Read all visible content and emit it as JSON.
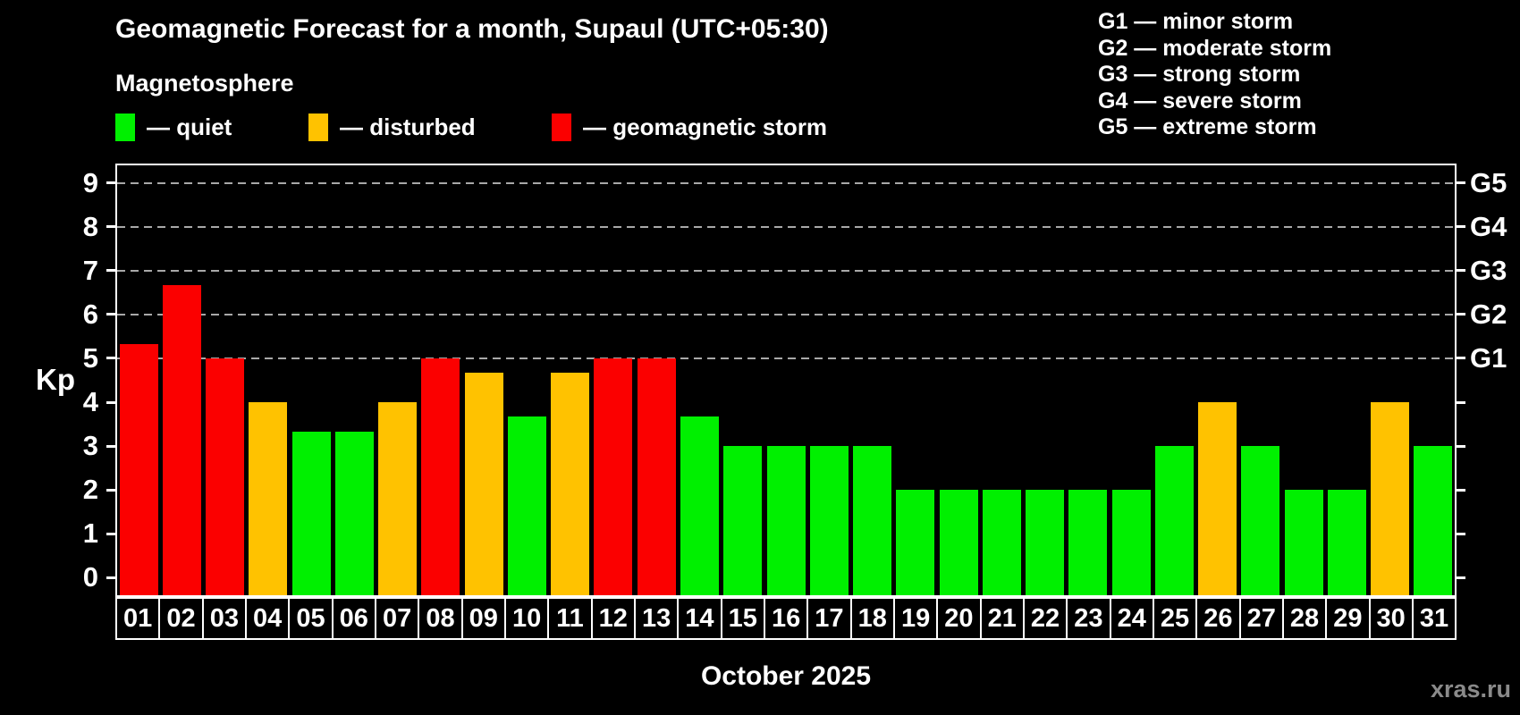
{
  "title": "Geomagnetic Forecast for a month, Supaul (UTC+05:30)",
  "subtitle": "Magnetosphere",
  "legend": {
    "quiet": "— quiet",
    "disturbed": "— disturbed",
    "storm": "— geomagnetic storm"
  },
  "g_legend": [
    "G1 — minor storm",
    "G2 — moderate storm",
    "G3 — strong storm",
    "G4 — severe storm",
    "G5 — extreme storm"
  ],
  "y_axis": {
    "label": "Kp",
    "ticks": [
      0,
      1,
      2,
      3,
      4,
      5,
      6,
      7,
      8,
      9
    ]
  },
  "right_axis": {
    "labels": [
      {
        "text": "G1",
        "kp": 5
      },
      {
        "text": "G2",
        "kp": 6
      },
      {
        "text": "G3",
        "kp": 7
      },
      {
        "text": "G4",
        "kp": 8
      },
      {
        "text": "G5",
        "kp": 9
      }
    ]
  },
  "x_axis": {
    "label": "October 2025"
  },
  "watermark": "xras.ru",
  "colors": {
    "quiet": "#00f000",
    "disturbed": "#ffc200",
    "storm": "#fb0000",
    "grid": "#a8a8a8",
    "axis": "#ffffff",
    "background": "#000000",
    "watermark": "#8a8a8a"
  },
  "chart_data": {
    "type": "bar",
    "title": "Geomagnetic Forecast for a month, Supaul (UTC+05:30)",
    "xlabel": "October 2025",
    "ylabel": "Kp",
    "ylim": [
      0,
      9
    ],
    "grid_on": true,
    "gridlines_at_kp": [
      5,
      6,
      7,
      8,
      9
    ],
    "legend_position": "top",
    "categories": [
      "01",
      "02",
      "03",
      "04",
      "05",
      "06",
      "07",
      "08",
      "09",
      "10",
      "11",
      "12",
      "13",
      "14",
      "15",
      "16",
      "17",
      "18",
      "19",
      "20",
      "21",
      "22",
      "23",
      "24",
      "25",
      "26",
      "27",
      "28",
      "29",
      "30",
      "31"
    ],
    "values": [
      5.33,
      6.67,
      5,
      4,
      3.33,
      3.33,
      4,
      5,
      4.67,
      3.67,
      4.67,
      5,
      5,
      3.67,
      3,
      3,
      3,
      3,
      2,
      2,
      2,
      2,
      2,
      2,
      3,
      4,
      3,
      2,
      2,
      4,
      3
    ],
    "statuses": [
      "storm",
      "storm",
      "storm",
      "disturbed",
      "quiet",
      "quiet",
      "disturbed",
      "storm",
      "disturbed",
      "quiet",
      "disturbed",
      "storm",
      "storm",
      "quiet",
      "quiet",
      "quiet",
      "quiet",
      "quiet",
      "quiet",
      "quiet",
      "quiet",
      "quiet",
      "quiet",
      "quiet",
      "quiet",
      "disturbed",
      "quiet",
      "quiet",
      "quiet",
      "disturbed",
      "quiet"
    ]
  }
}
